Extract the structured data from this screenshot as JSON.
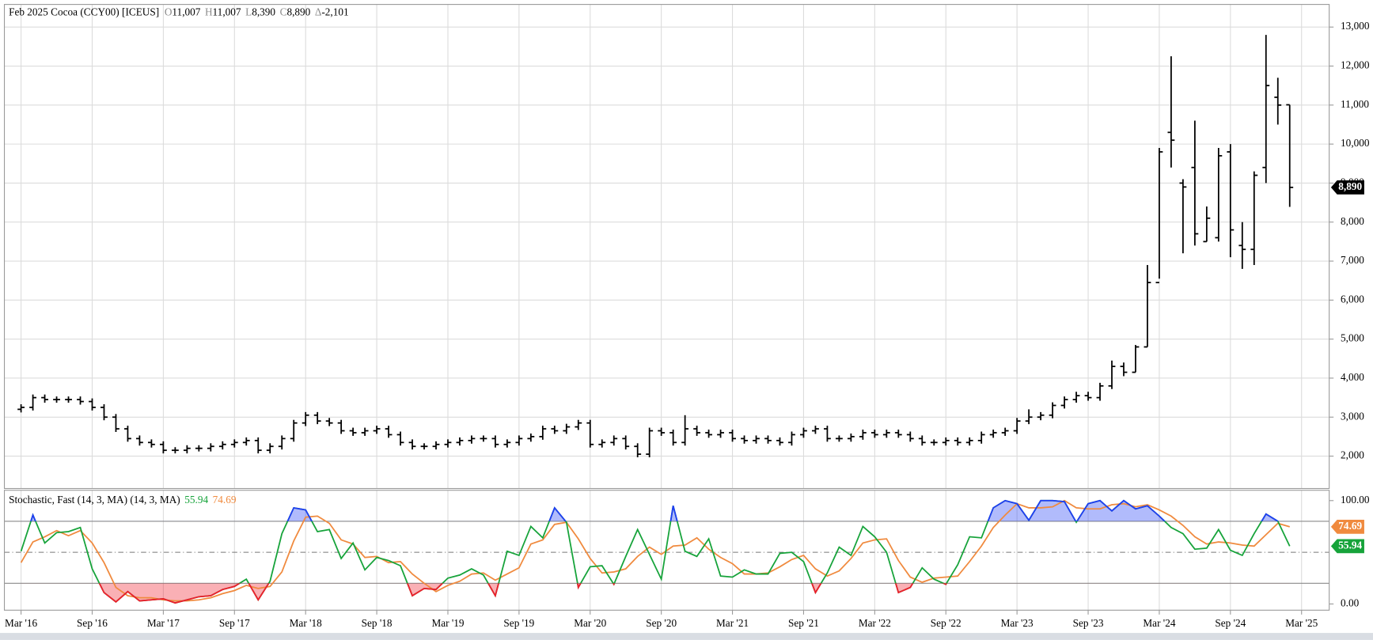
{
  "chart_data": [
    {
      "type": "ohlc",
      "title": "Feb 2025 Cocoa (CCY00) [ICEUS]",
      "quote_labels": [
        "O",
        "H",
        "L",
        "C",
        "Δ"
      ],
      "quote_values": [
        "11,007",
        "11,007",
        "8,390",
        "8,890",
        "-2,101"
      ],
      "close_label": "8,890",
      "color": "#000000",
      "x": [
        "2016-03",
        "2016-04",
        "2016-05",
        "2016-06",
        "2016-07",
        "2016-08",
        "2016-09",
        "2016-10",
        "2016-11",
        "2016-12",
        "2017-01",
        "2017-02",
        "2017-03",
        "2017-04",
        "2017-05",
        "2017-06",
        "2017-07",
        "2017-08",
        "2017-09",
        "2017-10",
        "2017-11",
        "2017-12",
        "2018-01",
        "2018-02",
        "2018-03",
        "2018-04",
        "2018-05",
        "2018-06",
        "2018-07",
        "2018-08",
        "2018-09",
        "2018-10",
        "2018-11",
        "2018-12",
        "2019-01",
        "2019-02",
        "2019-03",
        "2019-04",
        "2019-05",
        "2019-06",
        "2019-07",
        "2019-08",
        "2019-09",
        "2019-10",
        "2019-11",
        "2019-12",
        "2020-01",
        "2020-02",
        "2020-03",
        "2020-04",
        "2020-05",
        "2020-06",
        "2020-07",
        "2020-08",
        "2020-09",
        "2020-10",
        "2020-11",
        "2020-12",
        "2021-01",
        "2021-02",
        "2021-03",
        "2021-04",
        "2021-05",
        "2021-06",
        "2021-07",
        "2021-08",
        "2021-09",
        "2021-10",
        "2021-11",
        "2021-12",
        "2022-01",
        "2022-02",
        "2022-03",
        "2022-04",
        "2022-05",
        "2022-06",
        "2022-07",
        "2022-08",
        "2022-09",
        "2022-10",
        "2022-11",
        "2022-12",
        "2023-01",
        "2023-02",
        "2023-03",
        "2023-04",
        "2023-05",
        "2023-06",
        "2023-07",
        "2023-08",
        "2023-09",
        "2023-10",
        "2023-11",
        "2023-12",
        "2024-01",
        "2024-02",
        "2024-03",
        "2024-04",
        "2024-05",
        "2024-06",
        "2024-07",
        "2024-08",
        "2024-09",
        "2024-10",
        "2024-11",
        "2024-12",
        "2025-01",
        "2025-02"
      ],
      "open": [
        3200,
        3250,
        3500,
        3450,
        3450,
        3450,
        3400,
        3250,
        3000,
        2700,
        2450,
        2350,
        2300,
        2150,
        2150,
        2200,
        2200,
        2250,
        2300,
        2350,
        2400,
        2150,
        2250,
        2450,
        2850,
        3050,
        2900,
        2850,
        2650,
        2600,
        2650,
        2700,
        2550,
        2350,
        2250,
        2250,
        2300,
        2350,
        2400,
        2450,
        2450,
        2300,
        2350,
        2450,
        2500,
        2700,
        2650,
        2750,
        2850,
        2300,
        2350,
        2450,
        2250,
        2050,
        2650,
        2600,
        2350,
        2700,
        2600,
        2550,
        2600,
        2450,
        2400,
        2450,
        2400,
        2350,
        2550,
        2650,
        2700,
        2450,
        2450,
        2500,
        2600,
        2550,
        2600,
        2550,
        2450,
        2350,
        2350,
        2400,
        2350,
        2400,
        2550,
        2600,
        2650,
        2900,
        3000,
        3050,
        3300,
        3450,
        3550,
        3500,
        3800,
        4300,
        4150,
        4800,
        6450,
        10300,
        9000,
        9400,
        7500,
        7600,
        9800,
        7400,
        7300,
        9400,
        11200,
        11007
      ],
      "high": [
        3330,
        3580,
        3580,
        3530,
        3530,
        3530,
        3480,
        3330,
        3080,
        2780,
        2530,
        2430,
        2380,
        2230,
        2280,
        2280,
        2330,
        2380,
        2430,
        2480,
        2480,
        2330,
        2530,
        2930,
        3130,
        3130,
        2980,
        2930,
        2730,
        2730,
        2780,
        2780,
        2630,
        2430,
        2330,
        2380,
        2430,
        2480,
        2530,
        2530,
        2530,
        2430,
        2530,
        2580,
        2780,
        2780,
        2830,
        2930,
        2930,
        2430,
        2530,
        2530,
        2330,
        2730,
        2730,
        2680,
        3050,
        2780,
        2680,
        2680,
        2680,
        2530,
        2530,
        2530,
        2480,
        2630,
        2730,
        2780,
        2780,
        2530,
        2580,
        2680,
        2680,
        2680,
        2680,
        2630,
        2530,
        2430,
        2480,
        2480,
        2480,
        2630,
        2680,
        2730,
        2980,
        3200,
        3130,
        3380,
        3530,
        3650,
        3650,
        3880,
        4450,
        4400,
        4850,
        6900,
        9900,
        12250,
        9100,
        10600,
        8400,
        9900,
        10000,
        8000,
        9300,
        12800,
        11700,
        11007
      ],
      "low": [
        3120,
        3170,
        3370,
        3370,
        3370,
        3320,
        3170,
        2920,
        2620,
        2370,
        2270,
        2220,
        2070,
        2070,
        2070,
        2120,
        2120,
        2170,
        2220,
        2270,
        2070,
        2070,
        2170,
        2370,
        2770,
        2820,
        2770,
        2570,
        2520,
        2520,
        2570,
        2470,
        2270,
        2170,
        2170,
        2170,
        2220,
        2270,
        2320,
        2370,
        2220,
        2220,
        2270,
        2370,
        2420,
        2570,
        2570,
        2670,
        2220,
        2220,
        2270,
        2170,
        1970,
        1970,
        2520,
        2270,
        2270,
        2520,
        2470,
        2470,
        2370,
        2320,
        2320,
        2320,
        2270,
        2270,
        2470,
        2570,
        2370,
        2370,
        2370,
        2420,
        2470,
        2470,
        2470,
        2370,
        2270,
        2270,
        2270,
        2270,
        2270,
        2320,
        2470,
        2520,
        2570,
        2820,
        2920,
        2970,
        3220,
        3370,
        3420,
        3420,
        3720,
        4050,
        4150,
        4800,
        6550,
        9400,
        7200,
        7400,
        7500,
        7500,
        7100,
        6800,
        6900,
        9000,
        10500,
        8390
      ],
      "close": [
        3250,
        3500,
        3450,
        3450,
        3450,
        3400,
        3250,
        3000,
        2700,
        2450,
        2350,
        2300,
        2150,
        2150,
        2200,
        2200,
        2250,
        2300,
        2350,
        2400,
        2150,
        2250,
        2450,
        2850,
        3050,
        2900,
        2850,
        2650,
        2600,
        2650,
        2700,
        2550,
        2350,
        2250,
        2250,
        2300,
        2350,
        2400,
        2450,
        2450,
        2300,
        2350,
        2450,
        2500,
        2700,
        2650,
        2750,
        2850,
        2300,
        2350,
        2450,
        2250,
        2050,
        2650,
        2600,
        2350,
        2700,
        2600,
        2550,
        2600,
        2450,
        2400,
        2450,
        2400,
        2350,
        2550,
        2650,
        2700,
        2450,
        2450,
        2500,
        2600,
        2550,
        2600,
        2550,
        2450,
        2350,
        2350,
        2400,
        2350,
        2400,
        2550,
        2600,
        2650,
        2900,
        3000,
        3050,
        3300,
        3450,
        3550,
        3500,
        3800,
        4300,
        4150,
        4800,
        6450,
        9800,
        10100,
        8900,
        7700,
        8100,
        9700,
        7800,
        7300,
        9200,
        11500,
        11000,
        8890
      ],
      "xlim": [
        "2016-02",
        "2025-05"
      ],
      "xticks": [
        {
          "value": "2016-03",
          "label": "Mar '16"
        },
        {
          "value": "2016-09",
          "label": "Sep '16"
        },
        {
          "value": "2017-03",
          "label": "Mar '17"
        },
        {
          "value": "2017-09",
          "label": "Sep '17"
        },
        {
          "value": "2018-03",
          "label": "Mar '18"
        },
        {
          "value": "2018-09",
          "label": "Sep '18"
        },
        {
          "value": "2019-03",
          "label": "Mar '19"
        },
        {
          "value": "2019-09",
          "label": "Sep '19"
        },
        {
          "value": "2020-03",
          "label": "Mar '20"
        },
        {
          "value": "2020-09",
          "label": "Sep '20"
        },
        {
          "value": "2021-03",
          "label": "Mar '21"
        },
        {
          "value": "2021-09",
          "label": "Sep '21"
        },
        {
          "value": "2022-03",
          "label": "Mar '22"
        },
        {
          "value": "2022-09",
          "label": "Sep '22"
        },
        {
          "value": "2023-03",
          "label": "Mar '23"
        },
        {
          "value": "2023-09",
          "label": "Sep '23"
        },
        {
          "value": "2024-03",
          "label": "Mar '24"
        },
        {
          "value": "2024-09",
          "label": "Sep '24"
        },
        {
          "value": "2025-03",
          "label": "Mar '25"
        }
      ],
      "ylim": [
        1170,
        13580
      ],
      "yticks": [
        {
          "value": 2000,
          "label": "2,000"
        },
        {
          "value": 3000,
          "label": "3,000"
        },
        {
          "value": 4000,
          "label": "4,000"
        },
        {
          "value": 5000,
          "label": "5,000"
        },
        {
          "value": 6000,
          "label": "6,000"
        },
        {
          "value": 7000,
          "label": "7,000"
        },
        {
          "value": 8000,
          "label": "8,000"
        },
        {
          "value": 9000,
          "label": "9,000"
        },
        {
          "value": 10000,
          "label": "10,000"
        },
        {
          "value": 11000,
          "label": "11,000"
        },
        {
          "value": 12000,
          "label": "12,000"
        },
        {
          "value": 13000,
          "label": "13,000"
        }
      ],
      "grid": true
    },
    {
      "type": "stochastic",
      "title": "Stochastic, Fast (14, 3, MA)  (14, 3, MA)",
      "series": [
        {
          "color": "#16a33a",
          "values": [
            51,
            86,
            59,
            69,
            70,
            74,
            34,
            11,
            2,
            12,
            3,
            4,
            5,
            1,
            4,
            7,
            8,
            14,
            17,
            24,
            4,
            22,
            68,
            93,
            91,
            70,
            72,
            44,
            59,
            33,
            45,
            42,
            37,
            8,
            15,
            14,
            25,
            28,
            34,
            28,
            8,
            51,
            47,
            75,
            64,
            93,
            79,
            16,
            36,
            37,
            19,
            46,
            72,
            48,
            24,
            95,
            51,
            46,
            63,
            27,
            26,
            33,
            29,
            29,
            49,
            50,
            41,
            11,
            30,
            55,
            47,
            75,
            65,
            50,
            11,
            16,
            35,
            24,
            19,
            38,
            65,
            64,
            93,
            100,
            97,
            81,
            100,
            100,
            99,
            79,
            97,
            100,
            90,
            100,
            92,
            95,
            85,
            74,
            68,
            53,
            54,
            72,
            52,
            47,
            68,
            87,
            80,
            55.94
          ]
        },
        {
          "color": "#f08a3e",
          "values": [
            40,
            60,
            65,
            71,
            66,
            71,
            59,
            40,
            16,
            8,
            6,
            6,
            4,
            3,
            3,
            4,
            6,
            10,
            13,
            18,
            15,
            17,
            31,
            61,
            84,
            85,
            78,
            62,
            58,
            45,
            46,
            40,
            41,
            29,
            20,
            12,
            18,
            22,
            29,
            30,
            23,
            29,
            35,
            58,
            62,
            77,
            79,
            63,
            44,
            30,
            31,
            34,
            46,
            55,
            48,
            56,
            57,
            64,
            53,
            45,
            39,
            29,
            29,
            30,
            36,
            43,
            47,
            34,
            27,
            32,
            44,
            59,
            62,
            63,
            42,
            26,
            21,
            25,
            26,
            27,
            41,
            56,
            74,
            86,
            97,
            93,
            93,
            94,
            100,
            93,
            92,
            92,
            96,
            97,
            94,
            96,
            91,
            85,
            76,
            65,
            58,
            60,
            59,
            57,
            56,
            67,
            78,
            74.69
          ]
        }
      ],
      "ylim": [
        -6,
        110
      ],
      "yticks": [
        {
          "value": 0,
          "label": "0.00"
        },
        {
          "value": 100,
          "label": "100.00"
        }
      ],
      "levels": [
        80,
        50,
        20
      ],
      "overbought_color": "#1f3cf5",
      "oversold_color": "#f01c2b",
      "grid": true
    }
  ]
}
